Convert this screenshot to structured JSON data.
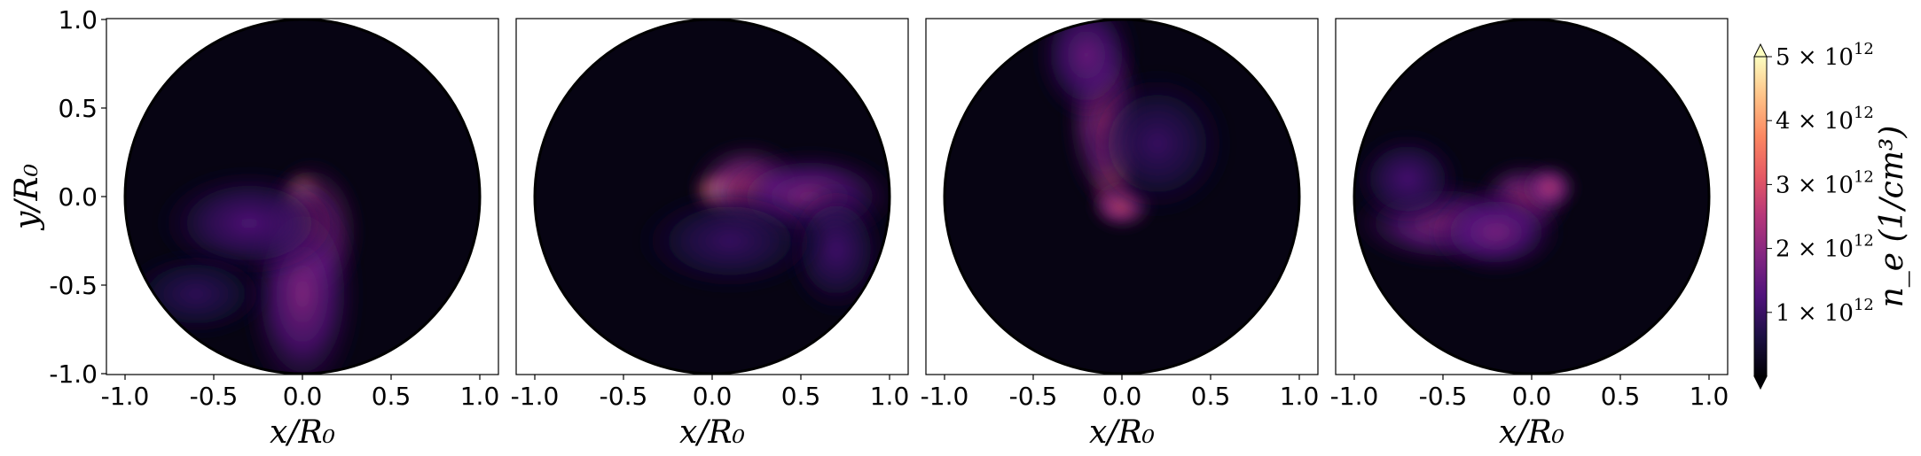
{
  "chart_data": [
    {
      "type": "heatmap",
      "panel": 1,
      "xlabel": "x/R₀",
      "ylabel": "y/R₀",
      "xlim": [
        -1.0,
        1.0
      ],
      "ylim": [
        -1.0,
        1.0
      ],
      "xticks": [
        "-1.0",
        "-0.5",
        "0.0",
        "0.5",
        "1.0"
      ],
      "yticks": [
        "1.0",
        "0.5",
        "0.0",
        "-0.5",
        "-1.0"
      ],
      "blobs": [
        {
          "x": 0.0,
          "y": 0.0,
          "sx": 0.06,
          "sy": 0.07,
          "value": 5000000000000.0
        },
        {
          "x": 0.05,
          "y": -0.2,
          "sx": 0.14,
          "sy": 0.2,
          "value": 2600000000000.0
        },
        {
          "x": 0.0,
          "y": -0.55,
          "sx": 0.16,
          "sy": 0.3,
          "value": 1900000000000.0
        },
        {
          "x": -0.3,
          "y": -0.15,
          "sx": 0.25,
          "sy": 0.15,
          "value": 1300000000000.0
        },
        {
          "x": -0.6,
          "y": -0.55,
          "sx": 0.2,
          "sy": 0.12,
          "value": 900000000000.0
        }
      ]
    },
    {
      "type": "heatmap",
      "panel": 2,
      "xlabel": "x/R₀",
      "xlim": [
        -1.0,
        1.0
      ],
      "ylim": [
        -1.0,
        1.0
      ],
      "xticks": [
        "-1.0",
        "-0.5",
        "0.0",
        "0.5",
        "1.0"
      ],
      "blobs": [
        {
          "x": 0.05,
          "y": 0.03,
          "sx": 0.08,
          "sy": 0.06,
          "value": 5000000000000.0
        },
        {
          "x": 0.2,
          "y": 0.05,
          "sx": 0.16,
          "sy": 0.13,
          "value": 2600000000000.0
        },
        {
          "x": 0.55,
          "y": 0.0,
          "sx": 0.24,
          "sy": 0.13,
          "value": 1900000000000.0
        },
        {
          "x": 0.7,
          "y": -0.3,
          "sx": 0.14,
          "sy": 0.18,
          "value": 1100000000000.0
        },
        {
          "x": 0.1,
          "y": -0.25,
          "sx": 0.25,
          "sy": 0.14,
          "value": 1000000000000.0
        }
      ]
    },
    {
      "type": "heatmap",
      "panel": 3,
      "xlabel": "x/R₀",
      "xlim": [
        -1.0,
        1.0
      ],
      "ylim": [
        -1.0,
        1.0
      ],
      "xticks": [
        "-1.0",
        "-0.5",
        "0.0",
        "0.5",
        "1.0"
      ],
      "blobs": [
        {
          "x": -0.05,
          "y": 0.15,
          "sx": 0.07,
          "sy": 0.15,
          "value": 3700000000000.0
        },
        {
          "x": -0.1,
          "y": 0.45,
          "sx": 0.11,
          "sy": 0.25,
          "value": 2400000000000.0
        },
        {
          "x": -0.2,
          "y": 0.8,
          "sx": 0.14,
          "sy": 0.18,
          "value": 1600000000000.0
        },
        {
          "x": 0.0,
          "y": -0.05,
          "sx": 0.09,
          "sy": 0.07,
          "value": 2800000000000.0
        },
        {
          "x": 0.2,
          "y": 0.3,
          "sx": 0.2,
          "sy": 0.2,
          "value": 1000000000000.0
        }
      ]
    },
    {
      "type": "heatmap",
      "panel": 4,
      "xlabel": "x/R₀",
      "xlim": [
        -1.0,
        1.0
      ],
      "ylim": [
        -1.0,
        1.0
      ],
      "xticks": [
        "-1.0",
        "-0.5",
        "0.0",
        "0.5",
        "1.0"
      ],
      "blobs": [
        {
          "x": -0.05,
          "y": -0.02,
          "sx": 0.13,
          "sy": 0.11,
          "value": 2400000000000.0
        },
        {
          "x": -0.5,
          "y": -0.15,
          "sx": 0.25,
          "sy": 0.12,
          "value": 2000000000000.0
        },
        {
          "x": -0.2,
          "y": -0.2,
          "sx": 0.18,
          "sy": 0.12,
          "value": 1800000000000.0
        },
        {
          "x": -0.7,
          "y": 0.1,
          "sx": 0.15,
          "sy": 0.13,
          "value": 1200000000000.0
        },
        {
          "x": 0.1,
          "y": 0.05,
          "sx": 0.08,
          "sy": 0.07,
          "value": 2600000000000.0
        }
      ]
    }
  ],
  "colorbar": {
    "label": "n_e (1/cm³)",
    "colormap": "magma",
    "vmin": 0,
    "vmax": 5000000000000.0,
    "extend": "both",
    "ticks": [
      {
        "value": 1000000000000.0,
        "mant": "1",
        "base": "× 10",
        "exp": "12"
      },
      {
        "value": 2000000000000.0,
        "mant": "2",
        "base": "× 10",
        "exp": "12"
      },
      {
        "value": 3000000000000.0,
        "mant": "3",
        "base": "× 10",
        "exp": "12"
      },
      {
        "value": 4000000000000.0,
        "mant": "4",
        "base": "× 10",
        "exp": "12"
      },
      {
        "value": 5000000000000.0,
        "mant": "5",
        "base": "× 10",
        "exp": "12"
      }
    ],
    "colors": [
      "#000004",
      "#1c1044",
      "#4f127b",
      "#812581",
      "#b5367a",
      "#e55964",
      "#fb8761",
      "#fec287",
      "#fcfdbf"
    ]
  }
}
